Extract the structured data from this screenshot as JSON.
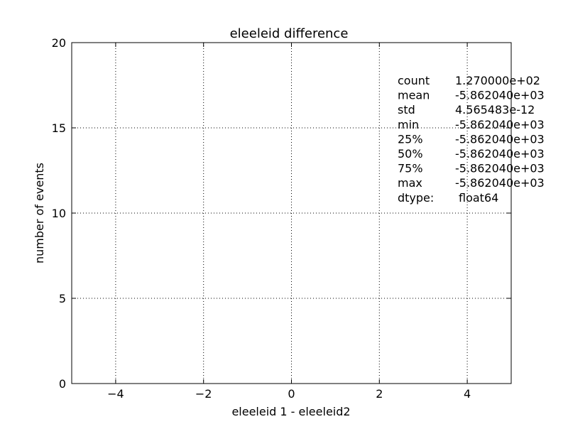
{
  "chart_data": {
    "type": "bar",
    "title": "eleeleid difference",
    "xlabel": "eleeleid 1 - eleeleid2",
    "ylabel": "number of events",
    "xlim": [
      -5,
      5
    ],
    "ylim": [
      0,
      20
    ],
    "x_ticks": [
      -4,
      -2,
      0,
      2,
      4
    ],
    "x_tick_labels": [
      "−4",
      "−2",
      "0",
      "2",
      "4"
    ],
    "y_ticks": [
      0,
      5,
      10,
      15,
      20
    ],
    "y_tick_labels": [
      "0",
      "5",
      "10",
      "15",
      "20"
    ],
    "grid": true,
    "series": [],
    "annotation": {
      "rows": [
        {
          "label": "count",
          "value": "1.270000e+02"
        },
        {
          "label": "mean",
          "value": "-5.862040e+03"
        },
        {
          "label": "std",
          "value": "4.565483e-12"
        },
        {
          "label": "min",
          "value": "-5.862040e+03"
        },
        {
          "label": "25%",
          "value": "-5.862040e+03"
        },
        {
          "label": "50%",
          "value": "-5.862040e+03"
        },
        {
          "label": "75%",
          "value": "-5.862040e+03"
        },
        {
          "label": "max",
          "value": "-5.862040e+03"
        },
        {
          "label": "dtype:",
          "value": "float64"
        }
      ]
    }
  }
}
